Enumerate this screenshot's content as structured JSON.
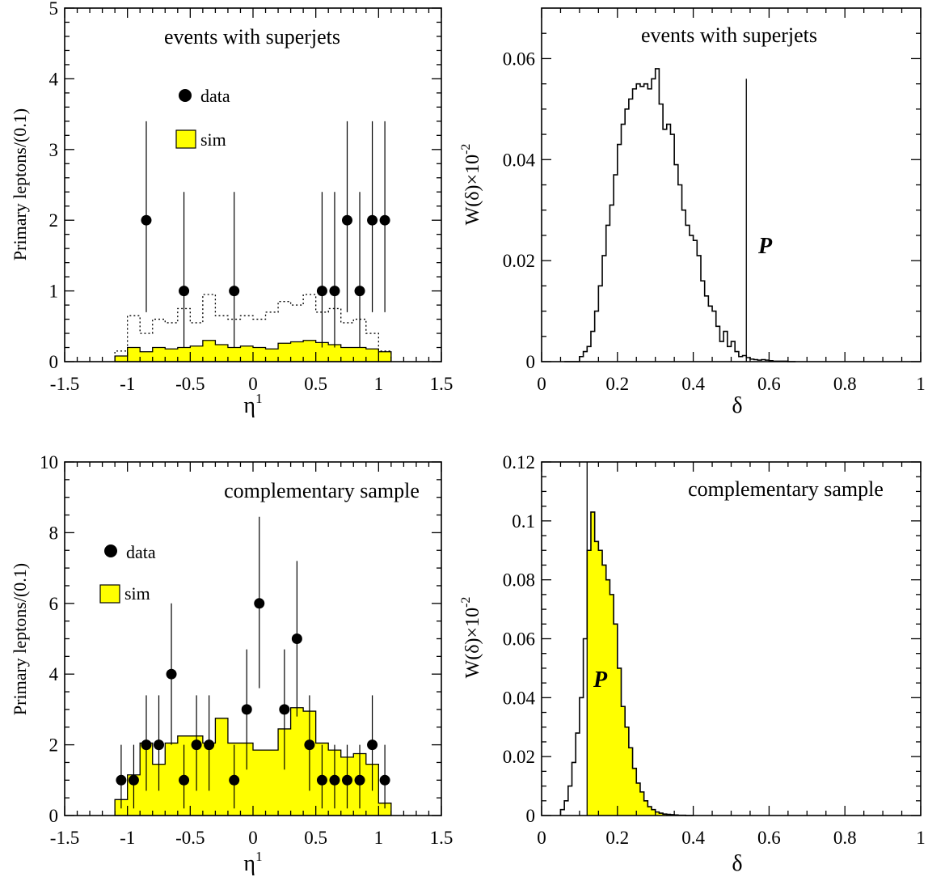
{
  "chart_data": [
    {
      "type": "histogram",
      "title": "events with superjets",
      "xlabel": "η",
      "xlabel_sup": "1",
      "ylabel": "Primary leptons/(0.1)",
      "xlim": [
        -1.5,
        1.5
      ],
      "ylim": [
        0,
        5
      ],
      "xticks": [
        "-1.5",
        "-1",
        "-0.5",
        "0",
        "0.5",
        "1",
        "1.5"
      ],
      "yticks": [
        "0",
        "1",
        "2",
        "3",
        "4",
        "5"
      ],
      "legend": [
        {
          "kind": "marker",
          "label": "data"
        },
        {
          "kind": "fill",
          "label": "sim"
        }
      ],
      "legend_position": "upper-left",
      "colors": {
        "sim_fill": "#ffff00",
        "line": "#000000"
      },
      "histograms": [
        {
          "name": "sim",
          "style": "filled",
          "bin_edges": [
            -1.1,
            -1.0,
            -0.9,
            -0.8,
            -0.7,
            -0.6,
            -0.5,
            -0.4,
            -0.3,
            -0.2,
            -0.1,
            0.0,
            0.1,
            0.2,
            0.3,
            0.4,
            0.5,
            0.6,
            0.7,
            0.8,
            0.9,
            1.0,
            1.1
          ],
          "values": [
            0.08,
            0.2,
            0.14,
            0.2,
            0.18,
            0.2,
            0.22,
            0.3,
            0.24,
            0.2,
            0.22,
            0.2,
            0.18,
            0.26,
            0.28,
            0.3,
            0.27,
            0.24,
            0.2,
            0.2,
            0.18,
            0.14
          ]
        },
        {
          "name": "",
          "style": "dotted",
          "bin_edges": [
            -1.1,
            -1.0,
            -0.9,
            -0.8,
            -0.7,
            -0.6,
            -0.5,
            -0.4,
            -0.3,
            -0.2,
            -0.1,
            0.0,
            0.1,
            0.2,
            0.3,
            0.4,
            0.5,
            0.6,
            0.7,
            0.8,
            0.9,
            1.0,
            1.1
          ],
          "values": [
            0.15,
            0.65,
            0.4,
            0.6,
            0.55,
            0.75,
            0.55,
            0.95,
            0.65,
            0.6,
            0.65,
            0.6,
            0.7,
            0.85,
            0.8,
            0.95,
            0.7,
            0.75,
            0.55,
            0.6,
            0.4,
            0.15
          ]
        }
      ],
      "points": {
        "name": "data",
        "x": [
          -0.85,
          -0.55,
          -0.15,
          0.55,
          0.65,
          0.75,
          0.85,
          0.95,
          1.05
        ],
        "y": [
          2,
          1,
          1,
          1,
          1,
          2,
          1,
          2,
          2
        ],
        "err_lo": [
          1.3,
          0.8,
          0.8,
          0.8,
          0.8,
          1.3,
          0.8,
          1.3,
          1.3
        ],
        "err_hi": [
          1.4,
          1.4,
          1.4,
          1.4,
          1.4,
          1.4,
          1.4,
          1.4,
          1.4
        ]
      }
    },
    {
      "type": "histogram",
      "title": "events with superjets",
      "xlabel": "δ",
      "ylabel": "W(δ)×10",
      "ylabel_sup": "-2",
      "xlim": [
        0,
        1
      ],
      "ylim": [
        0,
        0.07
      ],
      "xticks": [
        "0",
        "0.2",
        "0.4",
        "0.6",
        "0.8",
        "1"
      ],
      "yticks": [
        "0",
        "0.02",
        "0.04",
        "0.06"
      ],
      "annotation": "P",
      "vline_x": 0.54,
      "vline_top": 0.056,
      "fill_from": null,
      "colors": {
        "fill": "#ffff00",
        "line": "#000000"
      },
      "histogram": {
        "x0": 0.06,
        "bin_width": 0.01,
        "values": [
          0,
          0,
          0,
          0,
          0.001,
          0.002,
          0.003,
          0.006,
          0.01,
          0.015,
          0.021,
          0.027,
          0.031,
          0.037,
          0.043,
          0.047,
          0.05,
          0.052,
          0.054,
          0.055,
          0.0545,
          0.055,
          0.054,
          0.056,
          0.058,
          0.051,
          0.046,
          0.047,
          0.045,
          0.039,
          0.035,
          0.03,
          0.027,
          0.025,
          0.024,
          0.021,
          0.016,
          0.013,
          0.011,
          0.01,
          0.007,
          0.004,
          0.006,
          0.003,
          0.004,
          0.002,
          0.001,
          0.0012,
          0.0008,
          0.0005,
          0.0004,
          0.0003,
          0.0004,
          0.0003,
          0.0002,
          0.0001,
          0.0001,
          0.0001,
          0.0001,
          0,
          0
        ]
      }
    },
    {
      "type": "histogram",
      "title": "complementary sample",
      "xlabel": "η",
      "xlabel_sup": "1",
      "ylabel": "Primary leptons/(0.1)",
      "xlim": [
        -1.5,
        1.5
      ],
      "ylim": [
        0,
        10
      ],
      "xticks": [
        "-1.5",
        "-1",
        "-0.5",
        "0",
        "0.5",
        "1",
        "1.5"
      ],
      "yticks": [
        "0",
        "2",
        "4",
        "6",
        "8",
        "10"
      ],
      "legend": [
        {
          "kind": "marker",
          "label": "data"
        },
        {
          "kind": "fill",
          "label": "sim"
        }
      ],
      "legend_position": "upper-left",
      "colors": {
        "sim_fill": "#ffff00",
        "line": "#000000"
      },
      "histograms": [
        {
          "name": "sim",
          "style": "filled",
          "bin_edges": [
            -1.1,
            -1.0,
            -0.9,
            -0.8,
            -0.7,
            -0.6,
            -0.5,
            -0.4,
            -0.3,
            -0.2,
            -0.1,
            0.0,
            0.1,
            0.2,
            0.3,
            0.4,
            0.5,
            0.6,
            0.7,
            0.8,
            0.9,
            1.0,
            1.1
          ],
          "values": [
            0.45,
            1.15,
            2.05,
            1.45,
            2.05,
            2.25,
            2.25,
            2.05,
            2.75,
            2.05,
            2.05,
            1.85,
            1.85,
            2.45,
            3.05,
            2.95,
            2.05,
            1.85,
            1.65,
            1.75,
            1.45,
            0.35
          ]
        }
      ],
      "points": {
        "name": "data",
        "x": [
          -1.05,
          -0.95,
          -0.85,
          -0.75,
          -0.65,
          -0.55,
          -0.45,
          -0.35,
          -0.15,
          -0.05,
          0.05,
          0.25,
          0.35,
          0.45,
          0.55,
          0.65,
          0.75,
          0.85,
          0.95,
          1.05
        ],
        "y": [
          1,
          1,
          2,
          2,
          4,
          1,
          2,
          2,
          1,
          3,
          6,
          3,
          5,
          2,
          1,
          1,
          1,
          1,
          2,
          1
        ],
        "err_lo": [
          0.8,
          0.8,
          1.3,
          1.3,
          2.0,
          0.8,
          1.3,
          1.3,
          0.8,
          1.7,
          2.4,
          1.7,
          2.2,
          1.3,
          0.8,
          0.8,
          0.8,
          0.8,
          1.3,
          0.8
        ],
        "err_hi": [
          1.0,
          1.0,
          1.4,
          1.4,
          2.0,
          1.0,
          1.4,
          1.4,
          1.0,
          1.7,
          2.45,
          1.7,
          2.2,
          1.4,
          1.0,
          1.0,
          1.0,
          1.0,
          1.4,
          1.0
        ]
      }
    },
    {
      "type": "histogram",
      "title": "complementary sample",
      "xlabel": "δ",
      "ylabel": "W(δ)×10",
      "ylabel_sup": "-2",
      "xlim": [
        0,
        1
      ],
      "ylim": [
        0,
        0.12
      ],
      "xticks": [
        "0",
        "0.2",
        "0.4",
        "0.6",
        "0.8",
        "1"
      ],
      "yticks": [
        "0",
        "0.02",
        "0.04",
        "0.06",
        "0.08",
        "0.1",
        "0.12"
      ],
      "annotation": "P",
      "vline_x": 0.12,
      "vline_top": 0.12,
      "fill_from": 0.12,
      "colors": {
        "fill": "#ffff00",
        "line": "#000000"
      },
      "histogram": {
        "x0": 0.05,
        "bin_width": 0.01,
        "values": [
          0.002,
          0.005,
          0.01,
          0.018,
          0.028,
          0.04,
          0.06,
          0.09,
          0.103,
          0.093,
          0.09,
          0.085,
          0.08,
          0.075,
          0.065,
          0.05,
          0.037,
          0.03,
          0.023,
          0.016,
          0.011,
          0.008,
          0.005,
          0.003,
          0.002,
          0.0012,
          0.0008,
          0.0005,
          0.0004,
          0.0003,
          0.0002,
          0.0001,
          0.0001,
          0,
          0
        ]
      }
    }
  ]
}
